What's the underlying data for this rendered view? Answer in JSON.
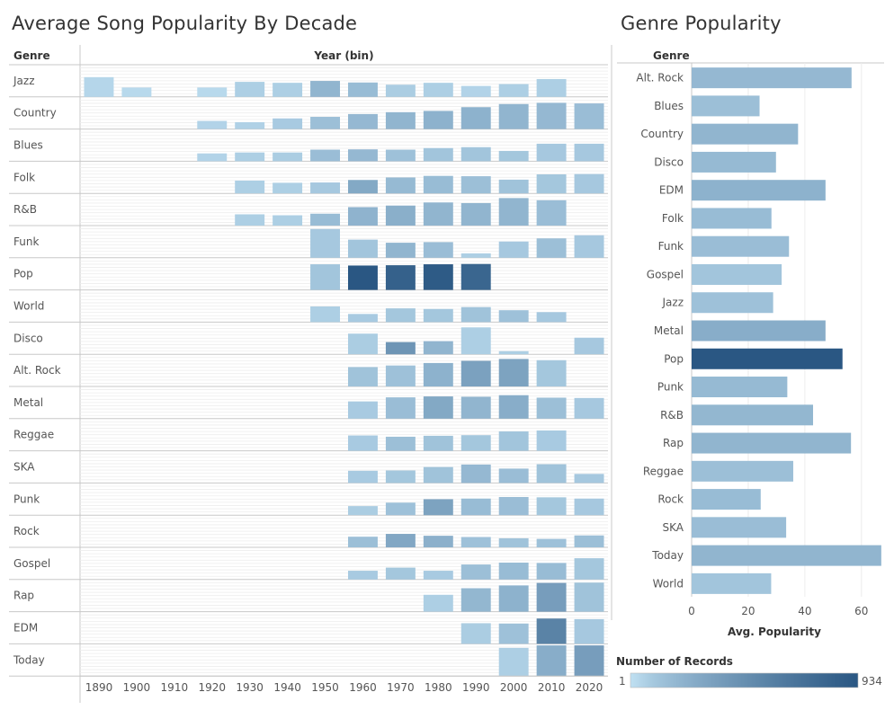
{
  "chart_data": [
    {
      "type": "heatmap",
      "title": "Average Song Popularity By Decade",
      "row_header": "Genre",
      "column_header": "Year (bin)",
      "columns": [
        "1890",
        "1900",
        "1910",
        "1920",
        "1930",
        "1940",
        "1950",
        "1960",
        "1970",
        "1980",
        "1990",
        "2000",
        "2010",
        "2020"
      ],
      "rows": [
        "Jazz",
        "Country",
        "Blues",
        "Folk",
        "R&B",
        "Funk",
        "Pop",
        "World",
        "Disco",
        "Alt. Rock",
        "Metal",
        "Reggae",
        "SKA",
        "Punk",
        "Rock",
        "Gospel",
        "Rap",
        "EDM",
        "Today"
      ],
      "avg_popularity": [
        [
          63,
          30,
          null,
          30,
          48,
          45,
          51,
          46,
          39,
          45,
          35,
          41,
          57,
          null
        ],
        [
          null,
          null,
          null,
          26,
          22,
          34,
          39,
          48,
          54,
          58,
          70,
          80,
          84,
          82
        ],
        [
          null,
          null,
          null,
          25,
          28,
          28,
          37,
          38,
          37,
          42,
          45,
          33,
          56,
          56
        ],
        [
          null,
          null,
          null,
          null,
          41,
          34,
          35,
          43,
          51,
          56,
          55,
          44,
          61,
          62
        ],
        [
          null,
          null,
          null,
          null,
          36,
          33,
          38,
          59,
          64,
          74,
          72,
          88,
          81,
          null
        ],
        [
          null,
          null,
          null,
          null,
          null,
          null,
          92,
          58,
          48,
          50,
          14,
          52,
          62,
          72
        ],
        [
          null,
          null,
          null,
          null,
          null,
          null,
          82,
          78,
          79,
          82,
          83,
          null,
          null,
          null
        ],
        [
          null,
          null,
          null,
          null,
          null,
          null,
          50,
          26,
          44,
          42,
          48,
          38,
          32,
          null
        ],
        [
          null,
          null,
          null,
          null,
          null,
          null,
          null,
          66,
          39,
          42,
          86,
          10,
          null,
          53
        ],
        [
          null,
          null,
          null,
          null,
          null,
          null,
          null,
          62,
          67,
          75,
          82,
          88,
          84,
          null
        ],
        [
          null,
          null,
          null,
          null,
          null,
          null,
          null,
          55,
          68,
          71,
          70,
          75,
          67,
          66
        ],
        [
          null,
          null,
          null,
          null,
          null,
          null,
          null,
          49,
          45,
          48,
          50,
          62,
          65,
          null
        ],
        [
          null,
          null,
          null,
          null,
          null,
          null,
          null,
          39,
          40,
          51,
          59,
          46,
          60,
          29
        ],
        [
          null,
          null,
          null,
          null,
          null,
          null,
          null,
          29,
          40,
          51,
          53,
          58,
          57,
          53
        ],
        [
          null,
          null,
          null,
          null,
          null,
          null,
          null,
          34,
          43,
          37,
          33,
          29,
          27,
          38
        ],
        [
          null,
          null,
          null,
          null,
          null,
          null,
          null,
          28,
          38,
          28,
          48,
          54,
          53,
          68
        ],
        [
          null,
          null,
          null,
          null,
          null,
          null,
          null,
          null,
          null,
          54,
          75,
          84,
          92,
          93
        ],
        [
          null,
          null,
          null,
          null,
          null,
          null,
          null,
          null,
          null,
          null,
          66,
          65,
          81,
          79
        ],
        [
          null,
          null,
          null,
          null,
          null,
          null,
          null,
          null,
          null,
          null,
          null,
          90,
          98,
          98
        ]
      ],
      "number_of_records": [
        [
          30,
          20,
          null,
          20,
          60,
          60,
          200,
          160,
          70,
          60,
          40,
          60,
          60,
          null
        ],
        [
          null,
          null,
          null,
          40,
          50,
          80,
          140,
          180,
          200,
          220,
          220,
          200,
          180,
          150
        ],
        [
          null,
          null,
          null,
          40,
          60,
          70,
          150,
          180,
          130,
          110,
          110,
          100,
          90,
          90
        ],
        [
          null,
          null,
          null,
          null,
          60,
          60,
          90,
          280,
          170,
          160,
          140,
          120,
          100,
          90
        ],
        [
          null,
          null,
          null,
          null,
          60,
          60,
          160,
          210,
          240,
          200,
          200,
          200,
          150,
          null
        ],
        [
          null,
          null,
          null,
          null,
          null,
          null,
          90,
          110,
          200,
          150,
          60,
          90,
          140,
          90
        ],
        [
          null,
          null,
          null,
          null,
          null,
          null,
          110,
          934,
          840,
          900,
          800,
          null,
          null,
          null
        ],
        [
          null,
          null,
          null,
          null,
          null,
          null,
          60,
          80,
          100,
          100,
          120,
          130,
          90,
          null
        ],
        [
          null,
          null,
          null,
          null,
          null,
          null,
          null,
          70,
          420,
          200,
          60,
          60,
          null,
          90
        ],
        [
          null,
          null,
          null,
          null,
          null,
          null,
          null,
          120,
          130,
          220,
          330,
          320,
          100,
          null
        ],
        [
          null,
          null,
          null,
          null,
          null,
          null,
          null,
          80,
          150,
          280,
          200,
          250,
          140,
          90
        ],
        [
          null,
          null,
          null,
          null,
          null,
          null,
          null,
          80,
          140,
          120,
          100,
          110,
          80,
          null
        ],
        [
          null,
          null,
          null,
          null,
          null,
          null,
          null,
          80,
          100,
          120,
          180,
          150,
          120,
          90
        ],
        [
          null,
          null,
          null,
          null,
          null,
          null,
          null,
          70,
          130,
          320,
          160,
          150,
          100,
          90
        ],
        [
          null,
          null,
          null,
          null,
          null,
          null,
          null,
          140,
          290,
          230,
          130,
          120,
          130,
          140
        ],
        [
          null,
          null,
          null,
          null,
          null,
          null,
          null,
          80,
          100,
          80,
          140,
          160,
          160,
          100
        ],
        [
          null,
          null,
          null,
          null,
          null,
          null,
          null,
          null,
          null,
          60,
          190,
          220,
          360,
          120
        ],
        [
          null,
          null,
          null,
          null,
          null,
          null,
          null,
          null,
          null,
          null,
          70,
          130,
          560,
          90
        ],
        [
          null,
          null,
          null,
          null,
          null,
          null,
          null,
          null,
          null,
          null,
          null,
          60,
          250,
          360
        ]
      ]
    },
    {
      "type": "bar",
      "orientation": "horizontal",
      "title": "Genre Popularity",
      "category_header": "Genre",
      "categories": [
        "Alt. Rock",
        "Blues",
        "Country",
        "Disco",
        "EDM",
        "Folk",
        "Funk",
        "Gospel",
        "Jazz",
        "Metal",
        "Pop",
        "Punk",
        "R&B",
        "Rap",
        "Reggae",
        "Rock",
        "SKA",
        "Today",
        "World"
      ],
      "values": [
        56.5,
        24.0,
        37.6,
        29.8,
        47.3,
        28.2,
        34.4,
        31.8,
        28.8,
        47.3,
        53.3,
        33.8,
        42.9,
        56.3,
        35.9,
        24.4,
        33.4,
        67.0,
        28.1
      ],
      "number_of_records": [
        180,
        140,
        200,
        170,
        220,
        160,
        150,
        110,
        130,
        250,
        934,
        170,
        190,
        200,
        140,
        160,
        150,
        200,
        110
      ],
      "xlabel": "Avg. Popularity",
      "xticks": [
        0,
        20,
        40,
        60
      ],
      "xlim": [
        0,
        68
      ],
      "gridlines": true
    }
  ],
  "legend": {
    "title": "Number of Records",
    "min_label": "1",
    "max_label": "934",
    "min": 1,
    "max": 934,
    "color_low": "#c0e0f2",
    "color_high": "#2a5783"
  }
}
